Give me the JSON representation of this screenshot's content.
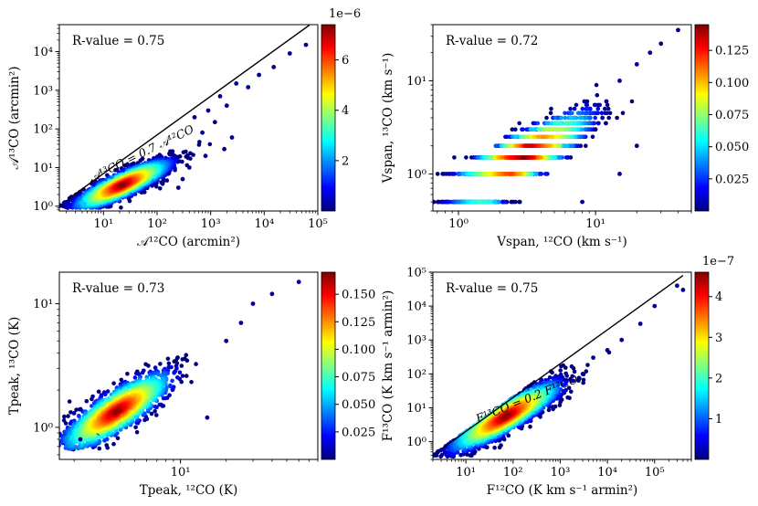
{
  "figure": {
    "cbar_colors": [
      "#00007f",
      "#0000ff",
      "#0080ff",
      "#00ffff",
      "#80ff80",
      "#ffff00",
      "#ff8000",
      "#ff0000",
      "#7f0000"
    ]
  },
  "chart_data": [
    {
      "type": "scatter",
      "panel": "top-left",
      "annotation": "R-value = 0.75",
      "xlabel": "𝒜¹²CO (arcmin²)",
      "ylabel": "𝒜¹³CO (arcmin²)",
      "xscale": "log",
      "yscale": "log",
      "xlim": [
        1.5,
        100000
      ],
      "ylim": [
        0.75,
        50000
      ],
      "xticks": [
        {
          "v": 10,
          "label": "10¹"
        },
        {
          "v": 100,
          "label": "10²"
        },
        {
          "v": 1000,
          "label": "10³"
        },
        {
          "v": 10000,
          "label": "10⁴"
        },
        {
          "v": 100000,
          "label": "10⁵"
        }
      ],
      "yticks": [
        {
          "v": 1,
          "label": "10⁰"
        },
        {
          "v": 10,
          "label": "10¹"
        },
        {
          "v": 100,
          "label": "10²"
        },
        {
          "v": 1000,
          "label": "10³"
        },
        {
          "v": 10000,
          "label": "10⁴"
        }
      ],
      "line": {
        "x": [
          2.2,
          70000
        ],
        "y": [
          1.54,
          49000
        ],
        "label": "𝒜¹³CO = 0.7 𝒜¹²CO"
      },
      "colorbar": {
        "range": [
          0,
          7.4e-06
        ],
        "ticks": [
          {
            "v": 2e-06,
            "label": "2"
          },
          {
            "v": 4e-06,
            "label": "4"
          },
          {
            "v": 6e-06,
            "label": "6"
          }
        ],
        "offset_label": "1e−6"
      },
      "points": [
        {
          "x": 60000,
          "y": 15000
        },
        {
          "x": 30000,
          "y": 9000
        },
        {
          "x": 15000,
          "y": 4000
        },
        {
          "x": 8000,
          "y": 2500
        },
        {
          "x": 5000,
          "y": 1200
        },
        {
          "x": 3000,
          "y": 1500
        },
        {
          "x": 2000,
          "y": 400
        },
        {
          "x": 1500,
          "y": 700
        },
        {
          "x": 1200,
          "y": 150
        },
        {
          "x": 900,
          "y": 300
        },
        {
          "x": 700,
          "y": 80
        },
        {
          "x": 500,
          "y": 200
        },
        {
          "x": 2500,
          "y": 60
        },
        {
          "x": 1800,
          "y": 30
        },
        {
          "x": 800,
          "y": 20
        },
        {
          "x": 400,
          "y": 10
        },
        {
          "x": 300,
          "y": 5
        },
        {
          "x": 250,
          "y": 3
        }
      ]
    },
    {
      "type": "scatter",
      "panel": "top-right",
      "annotation": "R-value = 0.72",
      "xlabel": "Vspan, ¹²CO (km s⁻¹)",
      "ylabel": "Vspan, ¹³CO (km s⁻¹)",
      "xscale": "log",
      "yscale": "log",
      "xlim": [
        0.65,
        50
      ],
      "ylim": [
        0.4,
        40
      ],
      "xticks": [
        {
          "v": 1,
          "label": "10⁰"
        },
        {
          "v": 10,
          "label": "10¹"
        }
      ],
      "yticks": [
        {
          "v": 1,
          "label": "10⁰"
        },
        {
          "v": 10,
          "label": "10¹"
        }
      ],
      "colorbar": {
        "range": [
          0,
          0.145
        ],
        "ticks": [
          {
            "v": 0.025,
            "label": "0.025"
          },
          {
            "v": 0.05,
            "label": "0.050"
          },
          {
            "v": 0.075,
            "label": "0.075"
          },
          {
            "v": 0.1,
            "label": "0.100"
          },
          {
            "v": 0.125,
            "label": "0.125"
          }
        ],
        "offset_label": ""
      },
      "points": [
        {
          "x": 40,
          "y": 35
        },
        {
          "x": 30,
          "y": 25
        },
        {
          "x": 25,
          "y": 20
        },
        {
          "x": 20,
          "y": 15
        },
        {
          "x": 15,
          "y": 10
        },
        {
          "x": 12,
          "y": 6
        },
        {
          "x": 10,
          "y": 3
        },
        {
          "x": 20,
          "y": 2
        },
        {
          "x": 8,
          "y": 0.5
        },
        {
          "x": 15,
          "y": 1
        }
      ]
    },
    {
      "type": "scatter",
      "panel": "bottom-left",
      "annotation": "R-value = 0.73",
      "xlabel": "Tpeak, ¹²CO (K)",
      "ylabel": "Tpeak, ¹³CO (K)",
      "xscale": "log",
      "yscale": "log",
      "xlim": [
        1.6,
        80
      ],
      "ylim": [
        0.55,
        18
      ],
      "xticks": [
        {
          "v": 10,
          "label": "10¹"
        }
      ],
      "yticks": [
        {
          "v": 1,
          "label": "10⁰"
        },
        {
          "v": 10,
          "label": "10¹"
        }
      ],
      "colorbar": {
        "range": [
          0,
          0.17
        ],
        "ticks": [
          {
            "v": 0.025,
            "label": "0.025"
          },
          {
            "v": 0.05,
            "label": "0.050"
          },
          {
            "v": 0.075,
            "label": "0.075"
          },
          {
            "v": 0.1,
            "label": "0.100"
          },
          {
            "v": 0.125,
            "label": "0.125"
          },
          {
            "v": 0.15,
            "label": "0.150"
          }
        ],
        "offset_label": ""
      },
      "points": [
        {
          "x": 60,
          "y": 15
        },
        {
          "x": 40,
          "y": 12
        },
        {
          "x": 30,
          "y": 10
        },
        {
          "x": 25,
          "y": 7
        },
        {
          "x": 20,
          "y": 5
        },
        {
          "x": 2,
          "y": 1.3
        },
        {
          "x": 2.2,
          "y": 0.8
        },
        {
          "x": 15,
          "y": 1.2
        }
      ]
    },
    {
      "type": "scatter",
      "panel": "bottom-right",
      "annotation": "R-value = 0.75",
      "xlabel": "F¹²CO (K km s⁻¹ armin²)",
      "ylabel": "F¹³CO (K km s⁻¹ armin²)",
      "xscale": "log",
      "yscale": "log",
      "xlim": [
        2,
        600000
      ],
      "ylim": [
        0.3,
        100000
      ],
      "xticks": [
        {
          "v": 10,
          "label": "10¹"
        },
        {
          "v": 100,
          "label": "10²"
        },
        {
          "v": 1000,
          "label": "10³"
        },
        {
          "v": 10000,
          "label": "10⁴"
        },
        {
          "v": 100000,
          "label": "10⁵"
        }
      ],
      "yticks": [
        {
          "v": 1,
          "label": "10⁰"
        },
        {
          "v": 10,
          "label": "10¹"
        },
        {
          "v": 100,
          "label": "10²"
        },
        {
          "v": 1000,
          "label": "10³"
        },
        {
          "v": 10000,
          "label": "10⁴"
        },
        {
          "v": 100000,
          "label": "10⁵"
        }
      ],
      "line": {
        "x": [
          3,
          400000
        ],
        "y": [
          0.6,
          80000
        ],
        "label": "F¹³CO = 0.2 F¹²CO"
      },
      "colorbar": {
        "range": [
          0,
          4.6e-07
        ],
        "ticks": [
          {
            "v": 1e-07,
            "label": "1"
          },
          {
            "v": 2e-07,
            "label": "2"
          },
          {
            "v": 3e-07,
            "label": "3"
          },
          {
            "v": 4e-07,
            "label": "4"
          }
        ],
        "offset_label": "1e−7"
      },
      "points": [
        {
          "x": 400000,
          "y": 30000
        },
        {
          "x": 300000,
          "y": 40000
        },
        {
          "x": 100000,
          "y": 10000
        },
        {
          "x": 50000,
          "y": 3000
        },
        {
          "x": 20000,
          "y": 1000
        },
        {
          "x": 10000,
          "y": 500
        },
        {
          "x": 5000,
          "y": 300
        },
        {
          "x": 3000,
          "y": 100
        }
      ]
    }
  ]
}
